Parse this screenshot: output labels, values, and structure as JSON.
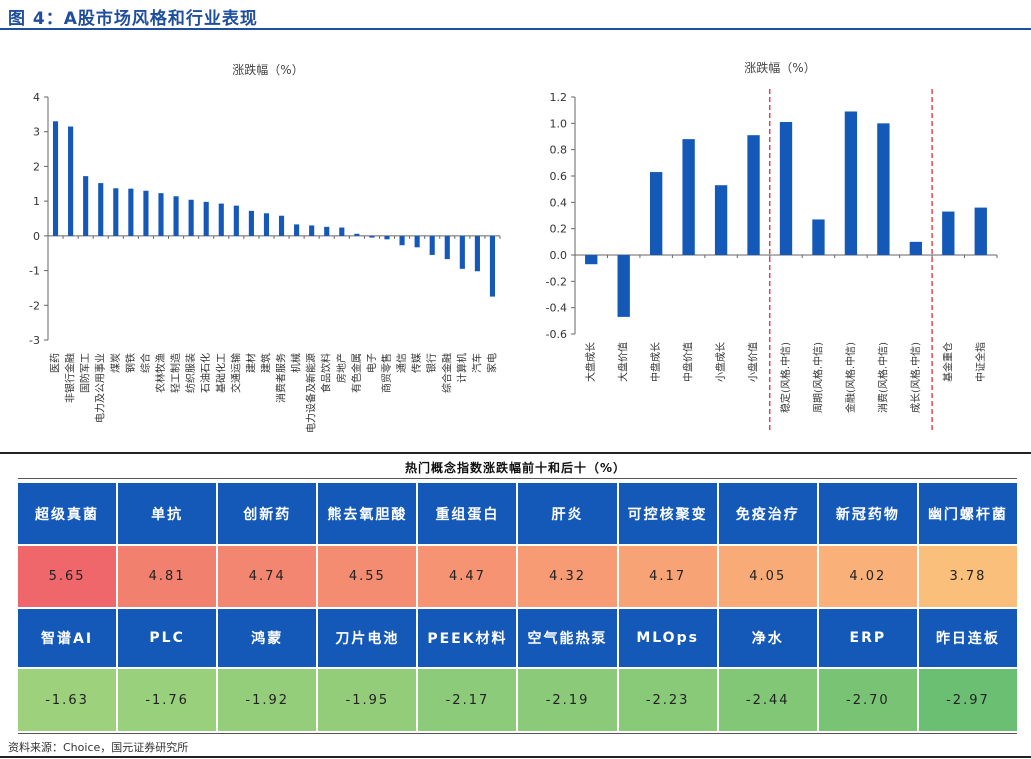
{
  "figure": {
    "title": "图 4：A股市场风格和行业表现",
    "source": "资料来源：Choice，国元证券研究所"
  },
  "colors": {
    "bar": "#1459b8",
    "title_blue": "#1f4e9c",
    "divider_red": "#d9201f",
    "header_bg": "#1459b8"
  },
  "chart_data": [
    {
      "type": "bar",
      "title": "涨跌幅（%）",
      "ylim": [
        -3,
        4
      ],
      "yticks": [
        -3,
        -2,
        -1,
        0,
        1,
        2,
        3,
        4
      ],
      "grid": false,
      "categories": [
        "医药",
        "非银行金融",
        "国防军工",
        "电力及公用事业",
        "煤炭",
        "钢铁",
        "综合",
        "农林牧渔",
        "轻工制造",
        "纺织服装",
        "石油石化",
        "基础化工",
        "交通运输",
        "建材",
        "建筑",
        "消费者服务",
        "机械",
        "电力设备及新能源",
        "食品饮料",
        "房地产",
        "有色金属",
        "电子",
        "商贸零售",
        "通信",
        "传媒",
        "银行",
        "综合金融",
        "计算机",
        "汽车",
        "家电"
      ],
      "values": [
        3.3,
        3.15,
        1.72,
        1.52,
        1.37,
        1.36,
        1.3,
        1.23,
        1.14,
        1.04,
        0.98,
        0.93,
        0.87,
        0.72,
        0.65,
        0.58,
        0.33,
        0.3,
        0.26,
        0.24,
        0.06,
        -0.05,
        -0.1,
        -0.27,
        -0.33,
        -0.55,
        -0.67,
        -0.95,
        -1.02,
        -1.75
      ]
    },
    {
      "type": "bar",
      "title": "涨跌幅（%）",
      "ylim": [
        -0.6,
        1.2
      ],
      "yticks": [
        -0.6,
        -0.4,
        -0.2,
        0.0,
        0.2,
        0.4,
        0.6,
        0.8,
        1.0,
        1.2
      ],
      "grid": false,
      "categories": [
        "大盘成长",
        "大盘价值",
        "中盘成长",
        "中盘价值",
        "小盘成长",
        "小盘价值",
        "稳定(风格.中信)",
        "周期(风格.中信)",
        "金融(风格.中信)",
        "消费(风格.中信)",
        "成长(风格.中信)",
        "基金重仓",
        "中证全指"
      ],
      "values": [
        -0.07,
        -0.47,
        0.63,
        0.88,
        0.53,
        0.91,
        1.01,
        0.27,
        1.09,
        1.0,
        0.1,
        0.33,
        0.36
      ],
      "group_dividers_after": [
        5,
        10
      ]
    }
  ],
  "table": {
    "title": "热门概念指数涨跌幅前十和后十（%）",
    "top_names": [
      "超级真菌",
      "单抗",
      "创新药",
      "熊去氧胆酸",
      "重组蛋白",
      "肝炎",
      "可控核聚变",
      "免疫治疗",
      "新冠药物",
      "幽门螺杆菌"
    ],
    "top_values": [
      "5.65",
      "4.81",
      "4.74",
      "4.55",
      "4.47",
      "4.32",
      "4.17",
      "4.05",
      "4.02",
      "3.78"
    ],
    "bottom_names": [
      "智谱AI",
      "PLC",
      "鸿蒙",
      "刀片电池",
      "PEEK材料",
      "空气能热泵",
      "MLOps",
      "净水",
      "ERP",
      "昨日连板"
    ],
    "bottom_values": [
      "-1.63",
      "-1.76",
      "-1.92",
      "-1.95",
      "-2.17",
      "-2.19",
      "-2.23",
      "-2.44",
      "-2.70",
      "-2.97"
    ],
    "top_colors": [
      "#f0676b",
      "#f2806f",
      "#f38670",
      "#f48c71",
      "#f59373",
      "#f69b74",
      "#f7a376",
      "#f8ab77",
      "#f9b079",
      "#fbbf7c"
    ],
    "bottom_colors": [
      "#9dd17c",
      "#99d07b",
      "#94ce7a",
      "#93cd7a",
      "#8ccb79",
      "#8bca78",
      "#89ca78",
      "#81c776",
      "#78c374",
      "#6bbf72"
    ]
  }
}
